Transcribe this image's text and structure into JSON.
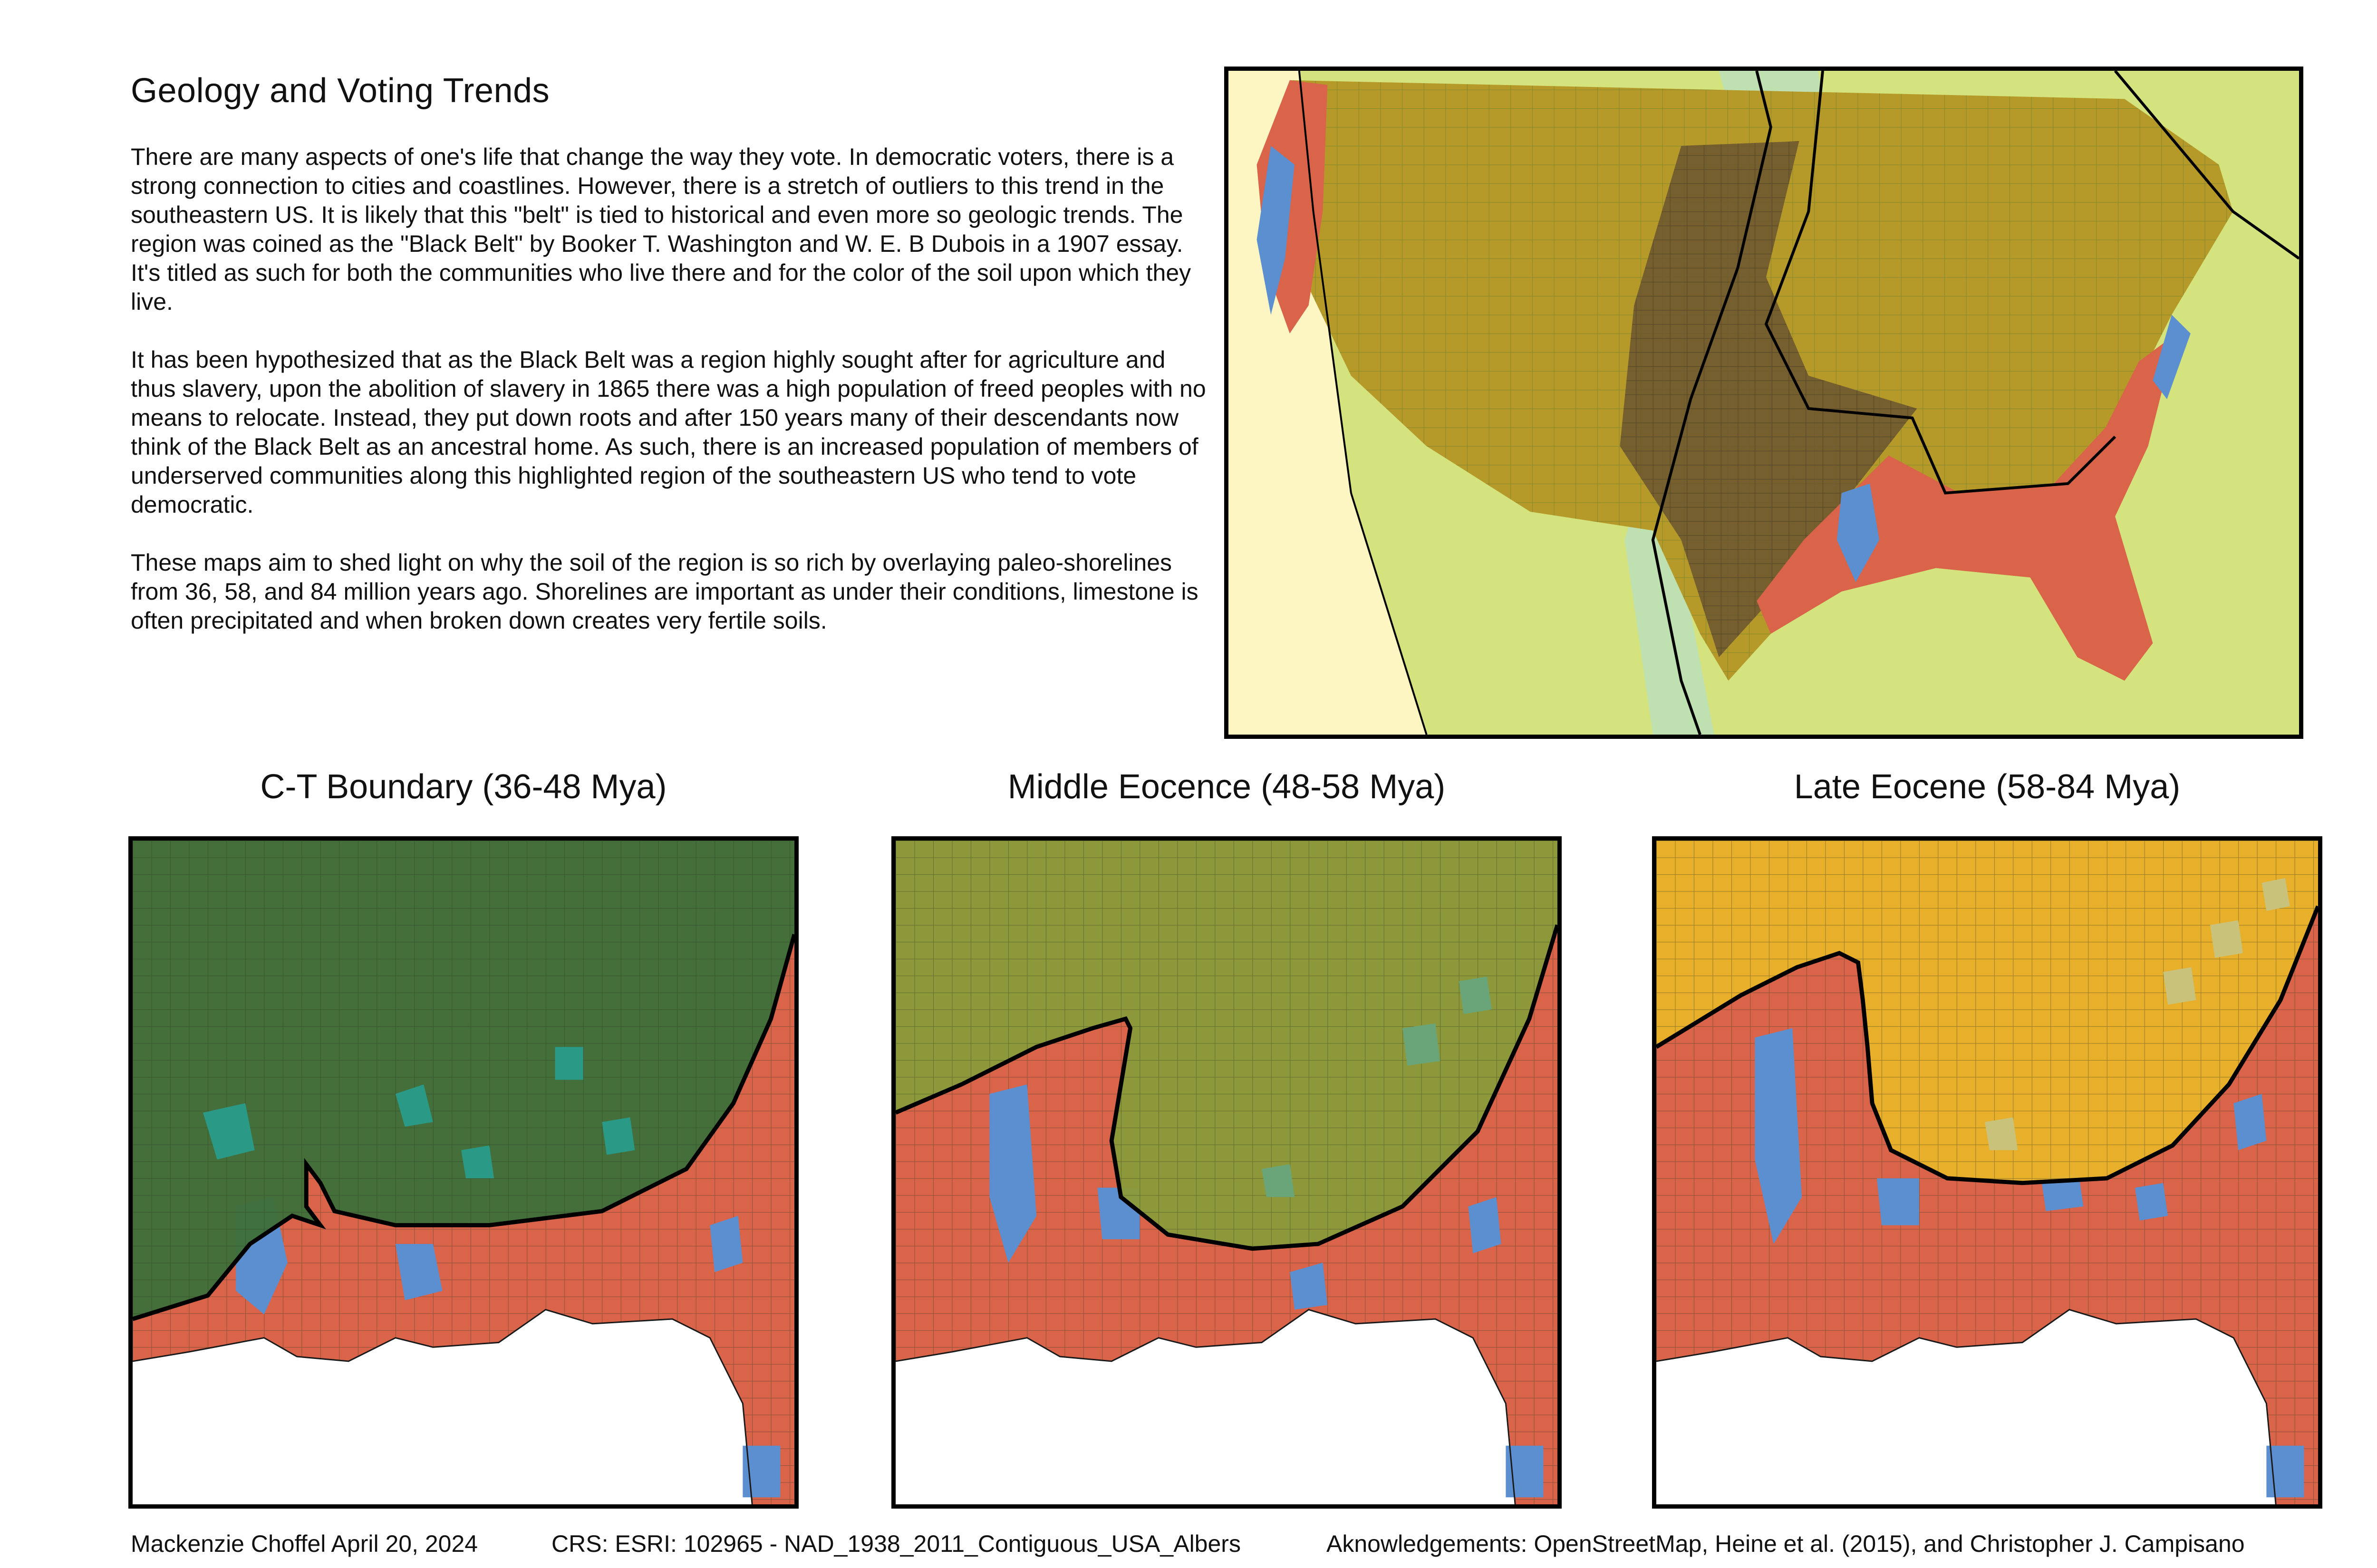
{
  "title": "Geology and Voting Trends",
  "paragraphs": [
    "There are many aspects of one's life that change the way they vote. In democratic voters, there is a strong connection to cities and coastlines. However, there is a stretch of outliers to this trend in the southeastern US. It is likely that this \"belt\" is tied to historical and even more so geologic trends. The region was coined as the \"Black Belt\" by Booker T. Washington and W. E. B Dubois in a 1907 essay. It's titled as such for both the communities who live there and for the color of the soil upon which they live.",
    "It has been hypothesized that as the Black Belt was a region highly sought after for agriculture and thus slavery, upon the abolition of slavery in 1865 there was a high population of freed peoples with no means to relocate. Instead, they put down roots and after 150 years many of their descendants now think of the Black Belt as an ancestral home. As such, there is an increased population of members of underserved communities along this highlighted region of the southeastern US who tend to vote democratic.",
    "These maps aim to shed light on why the soil of the region is so rich by overlaying paleo-shorelines from 36, 58, and 84 million years ago. Shorelines are important as under their conditions, limestone is often precipitated and when broken down creates very fertile soils."
  ],
  "maps": [
    {
      "title": "C-T Boundary (36-48 Mya)",
      "overlay_color": "#3f6e3a"
    },
    {
      "title": "Middle Eocence (48-58 Mya)",
      "overlay_color": "#8a9a3a"
    },
    {
      "title": "Late Eocene (58-84 Mya)",
      "overlay_color": "#e8b22a"
    }
  ],
  "colors": {
    "republican": "#d9644a",
    "democratic": "#5b8fd0",
    "land_overlay": "#b59a2a",
    "ocean_plate": "#d4e37e",
    "shoreline": "#000000"
  },
  "footer": {
    "author": "Mackenzie Choffel April 20, 2024",
    "crs": "CRS:   ESRI: 102965 - NAD_1938_2011_Contiguous_USA_Albers",
    "ack": "Aknowledgements: OpenStreetMap, Heine et al. (2015), and Christopher J. Campisano"
  }
}
